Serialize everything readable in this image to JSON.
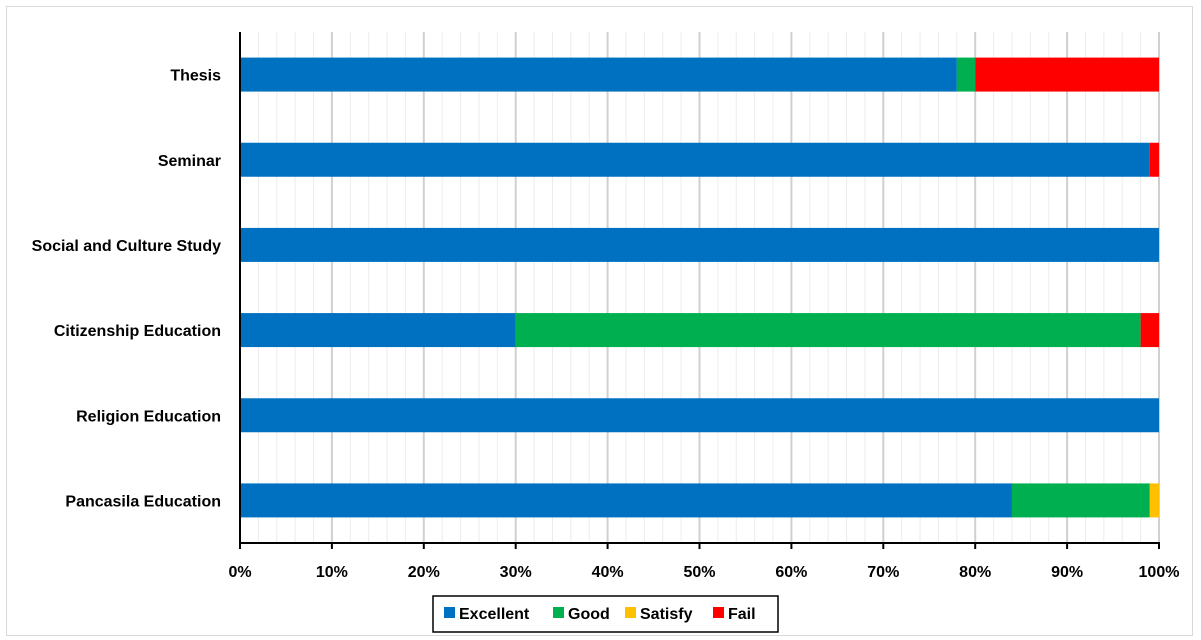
{
  "chart_data": {
    "type": "bar",
    "orientation": "horizontal",
    "stacked": "100%",
    "categories": [
      "Thesis",
      "Seminar",
      "Social and Culture Study",
      "Citizenship Education",
      "Religion Education",
      "Pancasila Education"
    ],
    "series": [
      {
        "name": "Excellent",
        "color": "#0070C0",
        "values": [
          78,
          99,
          100,
          30,
          100,
          84
        ]
      },
      {
        "name": "Good",
        "color": "#00B050",
        "values": [
          2,
          0,
          0,
          68,
          0,
          15
        ]
      },
      {
        "name": "Satisfy",
        "color": "#FFC000",
        "values": [
          0,
          0,
          0,
          0,
          0,
          1
        ]
      },
      {
        "name": "Fail",
        "color": "#FF0000",
        "values": [
          20,
          1,
          0,
          2,
          0,
          0
        ]
      }
    ],
    "xlim": [
      0,
      100
    ],
    "xticks": [
      "0%",
      "10%",
      "20%",
      "30%",
      "40%",
      "50%",
      "60%",
      "70%",
      "80%",
      "90%",
      "100%"
    ],
    "grid": true,
    "legend_position": "bottom",
    "title": "",
    "xlabel": "",
    "ylabel": ""
  }
}
